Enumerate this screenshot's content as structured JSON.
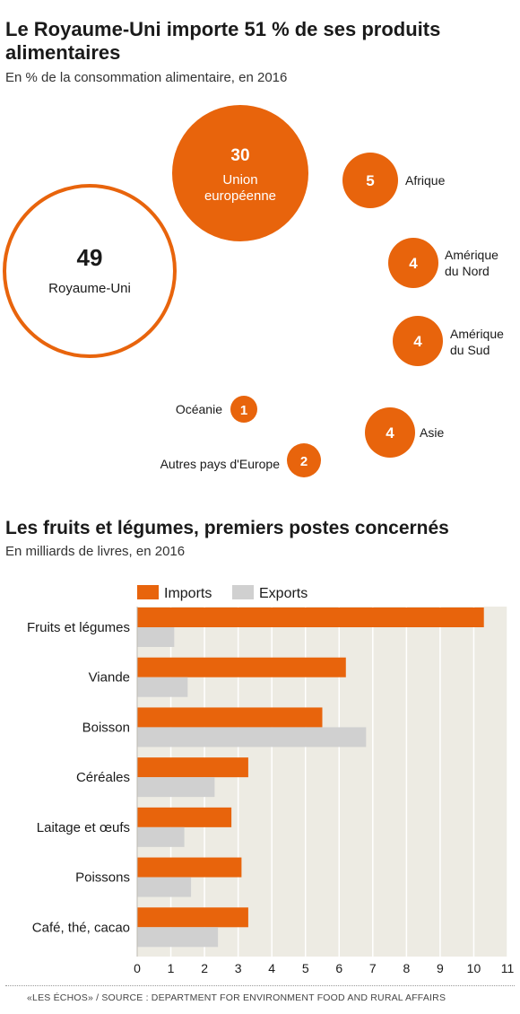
{
  "header1": {
    "title": "Le Royaume-Uni importe 51 % de ses produits alimentaires",
    "subtitle": "En % de la consommation alimentaire, en 2016"
  },
  "header2": {
    "title": "Les fruits et légumes, premiers postes concernés",
    "subtitle": "En milliards de livres, en 2016"
  },
  "source": "«LES ÉCHOS» / SOURCE : DEPARTMENT FOR ENVIRONMENT FOOD AND RURAL AFFAIRS",
  "colors": {
    "orange": "#e8640c",
    "grey": "#d0d0d0",
    "plot_bg": "#edebe3"
  },
  "chart_data": [
    {
      "type": "bubble",
      "items": [
        {
          "name": "Royaume-Uni",
          "value": 49
        },
        {
          "name": "Union européenne",
          "value": 30
        },
        {
          "name": "Afrique",
          "value": 5
        },
        {
          "name": "Amérique du Nord",
          "value": 4
        },
        {
          "name": "Amérique du Sud",
          "value": 4
        },
        {
          "name": "Asie",
          "value": 4
        },
        {
          "name": "Océanie",
          "value": 1
        },
        {
          "name": "Autres pays d'Europe",
          "value": 2
        }
      ]
    },
    {
      "type": "bar",
      "orientation": "horizontal",
      "categories": [
        "Fruits et légumes",
        "Viande",
        "Boisson",
        "Céréales",
        "Laitage et œufs",
        "Poissons",
        "Café, thé, cacao"
      ],
      "series": [
        {
          "name": "Imports",
          "values": [
            10.3,
            6.2,
            5.5,
            3.3,
            2.8,
            3.1,
            3.3
          ]
        },
        {
          "name": "Exports",
          "values": [
            1.1,
            1.5,
            6.8,
            2.3,
            1.4,
            1.6,
            2.4
          ]
        }
      ],
      "xlim": [
        0,
        11
      ],
      "xticks": [
        "0",
        "1",
        "2",
        "3",
        "4",
        "5",
        "6",
        "7",
        "8",
        "9",
        "10",
        "11"
      ],
      "grid": "vertical",
      "legend": "top"
    }
  ]
}
